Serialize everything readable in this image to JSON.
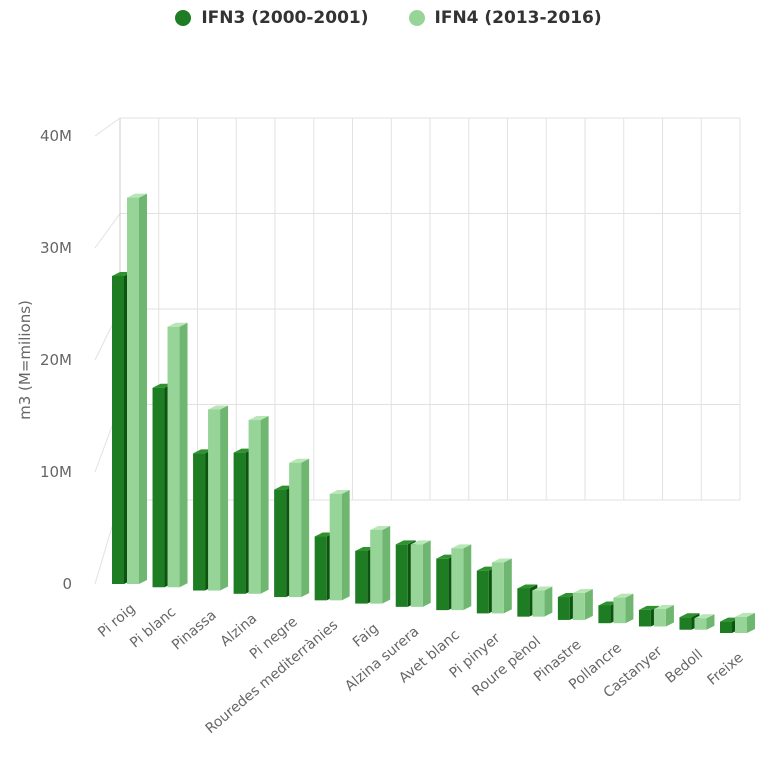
{
  "colors": {
    "series1_front": "#1e7d22",
    "series1_side": "#0d5410",
    "series1_top": "#2e922f",
    "series2_front": "#96d497",
    "series2_side": "#6fb671",
    "series2_top": "#b8e6b6",
    "grid": "#e2e2e2",
    "axis_text": "#666666"
  },
  "chart_data": {
    "type": "bar",
    "ylabel": "m3 (M=milions)",
    "ylim": [
      0,
      40
    ],
    "yticks": [
      0,
      10,
      20,
      30,
      40
    ],
    "ytick_labels": [
      "0",
      "10M",
      "20M",
      "30M",
      "40M"
    ],
    "legend_position": "top",
    "grid": true,
    "categories": [
      "Pi roig",
      "Pi blanc",
      "Pinassa",
      "Alzina",
      "Pi negre",
      "Rouredes mediterrànies",
      "Faig",
      "Alzina surera",
      "Avet blanc",
      "Pi pinyer",
      "Roure pènol",
      "Pinastre",
      "Pollancre",
      "Castanyer",
      "Bedoll",
      "Freixe"
    ],
    "series": [
      {
        "name": "IFN3 (2000-2001)",
        "values": [
          27.5,
          18.0,
          12.5,
          13.0,
          10.0,
          6.0,
          5.0,
          6.0,
          5.0,
          4.2,
          2.8,
          2.3,
          1.8,
          1.7,
          1.3,
          1.2
        ]
      },
      {
        "name": "IFN4 (2013-2016)",
        "values": [
          34.5,
          23.5,
          16.5,
          16.0,
          12.5,
          10.0,
          7.0,
          6.0,
          6.0,
          5.0,
          2.6,
          2.7,
          2.6,
          1.8,
          1.2,
          1.7
        ]
      }
    ]
  }
}
